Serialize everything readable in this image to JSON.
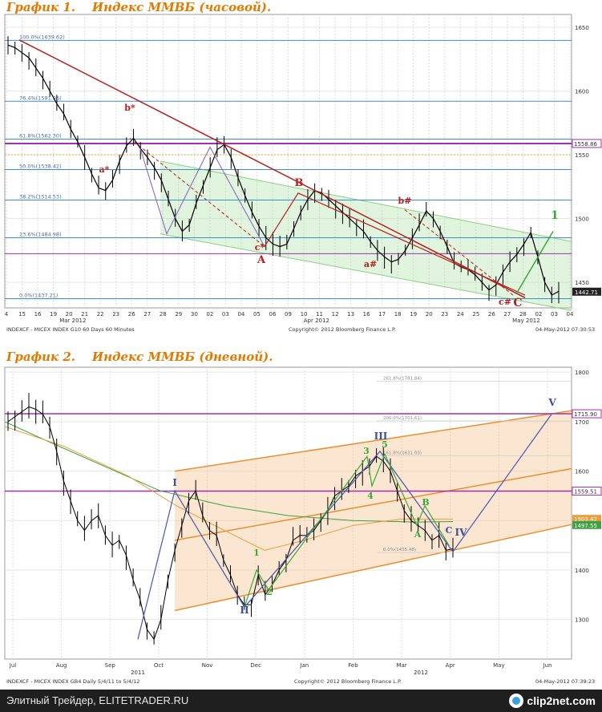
{
  "colors": {
    "title": "#e07a00",
    "red": "#b42020",
    "green": "#3aa83a",
    "blue": "#3d4e9c",
    "magenta": "#a030b0",
    "fib": "#3a8fd0",
    "orange": "#e89030"
  },
  "chart_data": [
    {
      "type": "line",
      "title": "График 1.    Индекс ММВБ (часовой).",
      "y_ticks": [
        "1650",
        "1600",
        "1550",
        "1500",
        "1450"
      ],
      "ylim": [
        1430,
        1660
      ],
      "x_ticks": [
        "4",
        "15",
        "16",
        "19",
        "20",
        "21",
        "22",
        "23",
        "26",
        "27",
        "28",
        "29",
        "30",
        "02",
        "03",
        "04",
        "05",
        "06",
        "09",
        "10",
        "11",
        "12",
        "13",
        "16",
        "17",
        "18",
        "19",
        "20",
        "23",
        "24",
        "25",
        "26",
        "27",
        "28",
        "02",
        "03",
        "04"
      ],
      "x_month_labels": [
        "Mar 2012",
        "Apr 2012",
        "May 2012"
      ],
      "fib_levels": [
        {
          "label": "100.0%(1639.62)",
          "value": 1639.62
        },
        {
          "label": "76.4%(1591.96)",
          "value": 1591.96
        },
        {
          "label": "61.8%(1562.30)",
          "value": 1562.3
        },
        {
          "label": "50.0%(1538.42)",
          "value": 1538.42
        },
        {
          "label": "38.2%(1514.53)",
          "value": 1514.53
        },
        {
          "label": "23.6%(1484.98)",
          "value": 1484.98
        },
        {
          "label": "0.0%(1437.21)",
          "value": 1437.21
        }
      ],
      "horizontal_lines": [
        {
          "label": "1558.86",
          "value": 1558.86
        },
        {
          "value": 1472.5
        },
        {
          "value": 1550
        }
      ],
      "last_price": "1442.71",
      "close_series": [
        1636,
        1634,
        1630,
        1626,
        1618,
        1610,
        1600,
        1590,
        1582,
        1570,
        1560,
        1548,
        1535,
        1524,
        1522,
        1530,
        1545,
        1557,
        1563,
        1555,
        1548,
        1540,
        1530,
        1515,
        1500,
        1490,
        1495,
        1512,
        1526,
        1540,
        1554,
        1558,
        1548,
        1532,
        1518,
        1505,
        1494,
        1485,
        1480,
        1478,
        1480,
        1492,
        1505,
        1515,
        1522,
        1520,
        1515,
        1510,
        1505,
        1500,
        1495,
        1490,
        1482,
        1475,
        1470,
        1466,
        1468,
        1475,
        1485,
        1495,
        1506,
        1500,
        1490,
        1478,
        1465,
        1462,
        1460,
        1456,
        1450,
        1444,
        1448,
        1458,
        1466,
        1472,
        1480,
        1489,
        1470,
        1450,
        1440,
        1443
      ],
      "wave_labels": [
        "b*",
        "a*",
        "c*",
        "A",
        "B",
        "b#",
        "a#",
        "c#",
        "C",
        "1"
      ],
      "footer_left": "INDEXCF - MICEX INDEX      G10   60 Days  60 Minutes",
      "footer_mid": "Copyright© 2012 Bloomberg Finance L.P.",
      "footer_right": "04-May-2012 07:30:53"
    },
    {
      "type": "line",
      "title": "График 2.    Индекс ММВБ (дневной).",
      "y_ticks": [
        "1800",
        "1700",
        "1600",
        "1500",
        "1400",
        "1300"
      ],
      "ylim": [
        1220,
        1810
      ],
      "x_ticks": [
        "Jul",
        "Aug",
        "Sep",
        "Oct",
        "Nov",
        "Dec",
        "Jan",
        "Feb",
        "Mar",
        "Apr",
        "May",
        "Jun"
      ],
      "x_year_labels": [
        "2011",
        "2012"
      ],
      "fib_labels": [
        "261.8%(1781.84)",
        "200.0%(1701.61)",
        "161.8%(1631.03)",
        "0.0%(1435.48)"
      ],
      "horizontal_lines": [
        {
          "label": "1715.90",
          "value": 1715.9
        },
        {
          "label": "1559.51",
          "value": 1559.51
        },
        {
          "label": "1503.42",
          "value": 1503.42
        },
        {
          "label": "1497.55",
          "value": 1497.55
        }
      ],
      "close_series": [
        1700,
        1710,
        1720,
        1730,
        1725,
        1715,
        1690,
        1640,
        1580,
        1540,
        1500,
        1480,
        1500,
        1510,
        1470,
        1450,
        1460,
        1430,
        1380,
        1340,
        1280,
        1260,
        1300,
        1380,
        1440,
        1490,
        1540,
        1560,
        1510,
        1480,
        1470,
        1420,
        1390,
        1350,
        1330,
        1330,
        1390,
        1350,
        1370,
        1400,
        1420,
        1460,
        1470,
        1470,
        1480,
        1500,
        1520,
        1550,
        1560,
        1570,
        1590,
        1600,
        1610,
        1630,
        1620,
        1600,
        1560,
        1520,
        1500,
        1490,
        1480,
        1460,
        1470,
        1440,
        1443
      ],
      "wave_labels": [
        "I",
        "II",
        "1",
        "2",
        "3",
        "4",
        "5",
        "III",
        "A",
        "B",
        "C",
        "IV",
        "V"
      ],
      "footer_left": "INDEXCF - MICEX INDEX     GB4    Daily  5/4/11 to 5/4/12",
      "footer_mid": "Copyright© 2012 Bloomberg Finance L.P.",
      "footer_right": "04-May-2012 07:39:23"
    }
  ],
  "footer": {
    "text": "Элитный Трейдер, ELITETRADER.RU",
    "logo": "clip2net.com"
  }
}
